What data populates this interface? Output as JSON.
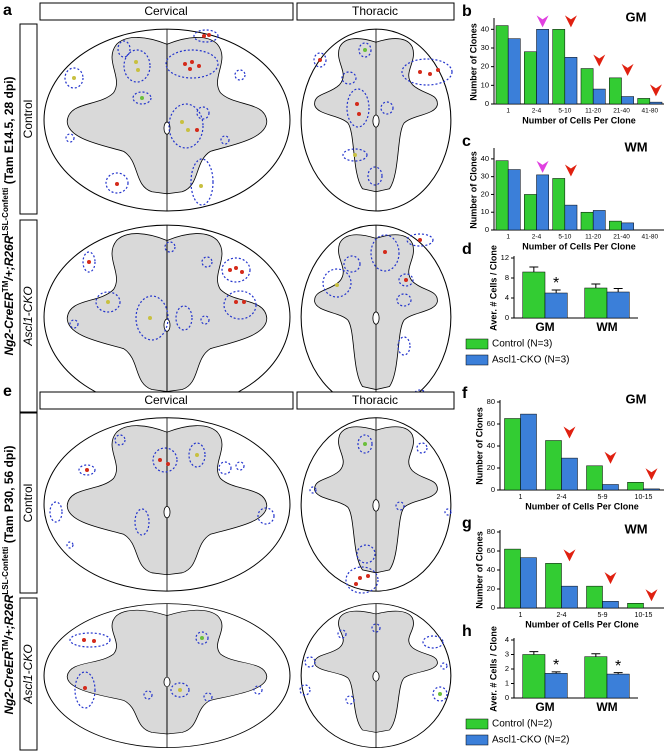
{
  "figure": {
    "a": {
      "panel": "a",
      "headers": [
        "Cervical",
        "Thoracic"
      ],
      "rows": [
        "Control",
        "Ascl1-CKO"
      ],
      "genotype": [
        "Ng2-CreER",
        "TM",
        "/+;R26R",
        "LSL-Confetti",
        " (Tam E14.5, 28 dpi)"
      ]
    },
    "e": {
      "panel": "e",
      "headers": [
        "Cervical",
        "Thoracic"
      ],
      "rows": [
        "Control",
        "Ascl1-CKO"
      ],
      "genotype": [
        "Ng2-CreER",
        "TM",
        "/+;R26R",
        "LSL-Confetti",
        " (Tam P30, 56 dpi)"
      ]
    }
  },
  "chart_data": [
    {
      "type": "bar",
      "panel": "b",
      "title": "GM",
      "categories": [
        "1",
        "2-4",
        "5-10",
        "11-20",
        "21-40",
        "41-80"
      ],
      "series": [
        {
          "color": "#33cc33",
          "values": [
            42,
            28,
            40,
            19,
            14,
            3
          ]
        },
        {
          "color": "#3b7fd9",
          "values": [
            35,
            40,
            25,
            8,
            4,
            1
          ]
        }
      ],
      "ylim": [
        0,
        45
      ],
      "yticks": [
        0,
        10,
        20,
        30,
        40
      ],
      "ylabel": "Number of Clones",
      "xlabel": "Number of Cells Per Clone",
      "arrows": [
        {
          "category": "2-4",
          "color": "#e040e0"
        },
        {
          "category": "5-10",
          "color": "#e02010"
        },
        {
          "category": "11-20",
          "color": "#e02010"
        },
        {
          "category": "21-40",
          "color": "#e02010"
        },
        {
          "category": "41-80",
          "color": "#e02010"
        }
      ]
    },
    {
      "type": "bar",
      "panel": "c",
      "title": "WM",
      "categories": [
        "1",
        "2-4",
        "5-10",
        "11-20",
        "21-40",
        "41-80"
      ],
      "series": [
        {
          "color": "#33cc33",
          "values": [
            39,
            20,
            29,
            10,
            5,
            0
          ]
        },
        {
          "color": "#3b7fd9",
          "values": [
            34,
            31,
            14,
            11,
            4,
            0
          ]
        }
      ],
      "ylim": [
        0,
        45
      ],
      "yticks": [
        0,
        10,
        20,
        30,
        40
      ],
      "ylabel": "Number of Clones",
      "xlabel": "Number of Cells Per Clone",
      "arrows": [
        {
          "category": "2-4",
          "color": "#e040e0"
        },
        {
          "category": "5-10",
          "color": "#e02010"
        }
      ]
    },
    {
      "type": "bar",
      "panel": "d",
      "categories": [
        "GM",
        "WM"
      ],
      "series": [
        {
          "name": "Control (N=3)",
          "color": "#33cc33",
          "values": [
            9.2,
            6.0
          ],
          "errors": [
            1.0,
            0.8
          ]
        },
        {
          "name": "Ascl1-CKO (N=3)",
          "color": "#3b7fd9",
          "values": [
            5.0,
            5.2
          ],
          "errors": [
            0.6,
            0.7
          ]
        }
      ],
      "ylim": [
        0,
        12
      ],
      "yticks": [
        0,
        4,
        8,
        12
      ],
      "ylabel": "Aver. # Cells / Clone",
      "annotations": [
        {
          "text": "*",
          "category": "GM",
          "series": "Ascl1-CKO (N=3)"
        }
      ],
      "legend": "bottom"
    },
    {
      "type": "bar",
      "panel": "f",
      "title": "GM",
      "categories": [
        "1",
        "2-4",
        "5-9",
        "10-15"
      ],
      "series": [
        {
          "color": "#33cc33",
          "values": [
            65,
            45,
            22,
            7
          ]
        },
        {
          "color": "#3b7fd9",
          "values": [
            69,
            29,
            5,
            1
          ]
        }
      ],
      "ylim": [
        0,
        80
      ],
      "yticks": [
        0,
        20,
        40,
        60,
        80
      ],
      "ylabel": "Number of Clones",
      "xlabel": "Number of Cells Per Clone",
      "arrows": [
        {
          "category": "2-4",
          "color": "#e02010"
        },
        {
          "category": "5-9",
          "color": "#e02010"
        },
        {
          "category": "10-15",
          "color": "#e02010"
        }
      ]
    },
    {
      "type": "bar",
      "panel": "g",
      "title": "WM",
      "categories": [
        "1",
        "2-4",
        "5-9",
        "10-15"
      ],
      "series": [
        {
          "color": "#33cc33",
          "values": [
            62,
            47,
            23,
            5
          ]
        },
        {
          "color": "#3b7fd9",
          "values": [
            53,
            23,
            7,
            0
          ]
        }
      ],
      "ylim": [
        0,
        80
      ],
      "yticks": [
        0,
        20,
        40,
        60,
        80
      ],
      "ylabel": "Number of Clones",
      "xlabel": "Number of Cells Per Clone",
      "arrows": [
        {
          "category": "2-4",
          "color": "#e02010"
        },
        {
          "category": "5-9",
          "color": "#e02010"
        },
        {
          "category": "10-15",
          "color": "#e02010"
        }
      ]
    },
    {
      "type": "bar",
      "panel": "h",
      "categories": [
        "GM",
        "WM"
      ],
      "series": [
        {
          "name": "Control (N=2)",
          "color": "#33cc33",
          "values": [
            3.0,
            2.85
          ],
          "errors": [
            0.2,
            0.2
          ]
        },
        {
          "name": "Ascl1-CKO (N=2)",
          "color": "#3b7fd9",
          "values": [
            1.7,
            1.65
          ],
          "errors": [
            0.1,
            0.1
          ]
        }
      ],
      "ylim": [
        0,
        4
      ],
      "yticks": [
        0,
        1,
        2,
        3,
        4
      ],
      "ylabel": "Aver. # Cells / Clone",
      "annotations": [
        {
          "text": "*",
          "category": "GM",
          "series": "Ascl1-CKO (N=2)"
        },
        {
          "text": "*",
          "category": "WM",
          "series": "Ascl1-CKO (N=2)"
        }
      ],
      "legend": "bottom"
    }
  ]
}
